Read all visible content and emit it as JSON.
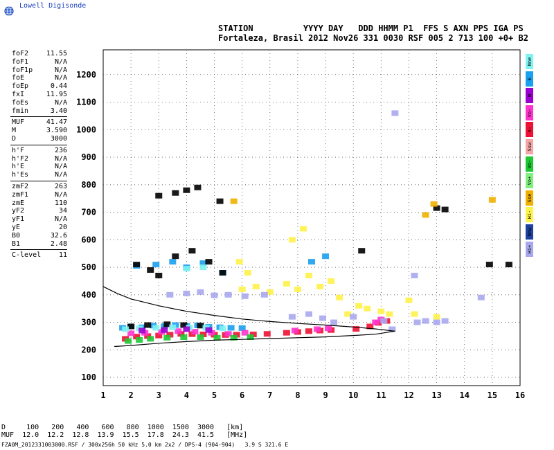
{
  "brand": "Lowell Digisonde",
  "header": {
    "line1": "STATION          YYYY DAY   DDD HHMM P1  FFS S AXN PPS IGA PS",
    "line2": "Fortaleza, Brasil 2012 Nov26 331 0030 RSF 005 2 713 100 +0+ B2"
  },
  "params": {
    "group1": [
      {
        "k": "foF2",
        "v": "11.55"
      },
      {
        "k": "foF1",
        "v": "N/A"
      },
      {
        "k": "foF1p",
        "v": "N/A"
      },
      {
        "k": "foE",
        "v": "N/A"
      },
      {
        "k": "foEp",
        "v": "0.44"
      },
      {
        "k": "fxI",
        "v": "11.95"
      },
      {
        "k": "foEs",
        "v": "N/A"
      },
      {
        "k": "fmin",
        "v": "3.40"
      }
    ],
    "group2": [
      {
        "k": "MUF",
        "v": "41.47"
      },
      {
        "k": "M",
        "v": "3.590"
      },
      {
        "k": "D",
        "v": "3000"
      }
    ],
    "group3": [
      {
        "k": "h'F",
        "v": "236"
      },
      {
        "k": "h'F2",
        "v": "N/A"
      },
      {
        "k": "h'E",
        "v": "N/A"
      },
      {
        "k": "h'Es",
        "v": "N/A"
      }
    ],
    "group4": [
      {
        "k": "zmF2",
        "v": "263"
      },
      {
        "k": "zmF1",
        "v": "N/A"
      },
      {
        "k": "zmE",
        "v": "110"
      },
      {
        "k": "yF2",
        "v": "34"
      },
      {
        "k": "yF1",
        "v": "N/A"
      },
      {
        "k": "yE",
        "v": "20"
      },
      {
        "k": "B0",
        "v": "32.6"
      },
      {
        "k": "B1",
        "v": "2.48"
      }
    ],
    "group5": [
      {
        "k": "C-level",
        "v": "11"
      }
    ]
  },
  "legend": [
    {
      "label": "Nne",
      "color": "#7ff2f2"
    },
    {
      "label": "E",
      "color": "#1aa0f0"
    },
    {
      "label": "W",
      "color": "#9b00d0"
    },
    {
      "label": "Vo-",
      "color": "#ff33cc"
    },
    {
      "label": "X-",
      "color": "#ee1133"
    },
    {
      "label": "Ssw",
      "color": "#f4a6a6"
    },
    {
      "label": "Vo-",
      "color": "#1ec832"
    },
    {
      "label": "Vo+",
      "color": "#7ff07f"
    },
    {
      "label": "Sse",
      "color": "#f0b000"
    },
    {
      "label": "Hi-",
      "color": "#fff24a"
    },
    {
      "label": "Nnw",
      "color": "#1e40a0"
    },
    {
      "label": "Hi+",
      "color": "#a8a8ee"
    }
  ],
  "footer": {
    "d_line": "D     100   200   400   600   800  1000  1500  3000   [km]",
    "muf_line": "MUF  12.0  12.2  12.8  13.9  15.5  17.8  24.3  41.5   [MHz]",
    "file_line": "FZA0M_2012331003000.RSF / 300x256h 50 kHz 5.0 km 2x2 / DPS-4 (904-904)   3.9 S 321.6 E"
  },
  "chart_data": {
    "type": "scatter",
    "title": "",
    "xlabel": "",
    "ylabel": "",
    "xlim": [
      1,
      16
    ],
    "ylim": [
      70,
      1290
    ],
    "x_ticks": [
      1,
      2,
      3,
      4,
      5,
      6,
      7,
      8,
      9,
      10,
      11,
      12,
      13,
      14,
      15,
      16
    ],
    "y_ticks": [
      100,
      200,
      300,
      400,
      500,
      600,
      700,
      800,
      900,
      1000,
      1100,
      1200
    ],
    "grid": true,
    "series": [
      {
        "color": "#1aa0f0",
        "points": [
          [
            1.7,
            280
          ],
          [
            2.0,
            285
          ],
          [
            2.4,
            282
          ],
          [
            2.8,
            288
          ],
          [
            3.2,
            286
          ],
          [
            3.6,
            290
          ],
          [
            4.0,
            287
          ],
          [
            4.4,
            289
          ],
          [
            4.8,
            284
          ],
          [
            5.2,
            282
          ],
          [
            5.6,
            280
          ],
          [
            6.0,
            279
          ],
          [
            2.2,
            505
          ],
          [
            2.9,
            510
          ],
          [
            3.5,
            520
          ],
          [
            4.0,
            500
          ],
          [
            4.6,
            515
          ],
          [
            5.3,
            480
          ],
          [
            8.5,
            520
          ],
          [
            9.0,
            540
          ]
        ]
      },
      {
        "color": "#ee1133",
        "points": [
          [
            1.8,
            240
          ],
          [
            2.2,
            248
          ],
          [
            2.6,
            250
          ],
          [
            3.0,
            252
          ],
          [
            3.4,
            255
          ],
          [
            3.8,
            258
          ],
          [
            4.2,
            257
          ],
          [
            4.6,
            256
          ],
          [
            5.0,
            255
          ],
          [
            5.4,
            254
          ],
          [
            5.8,
            255
          ],
          [
            6.4,
            256
          ],
          [
            6.9,
            258
          ],
          [
            7.6,
            262
          ],
          [
            8.0,
            265
          ],
          [
            8.4,
            268
          ],
          [
            8.8,
            270
          ],
          [
            9.2,
            272
          ],
          [
            10.1,
            276
          ],
          [
            10.6,
            285
          ],
          [
            10.9,
            298
          ],
          [
            11.2,
            305
          ]
        ]
      },
      {
        "color": "#ff33cc",
        "points": [
          [
            2.0,
            260
          ],
          [
            2.5,
            262
          ],
          [
            3.1,
            265
          ],
          [
            3.7,
            268
          ],
          [
            4.3,
            266
          ],
          [
            4.9,
            262
          ],
          [
            5.5,
            258
          ],
          [
            6.1,
            262
          ],
          [
            7.9,
            270
          ],
          [
            8.7,
            275
          ],
          [
            9.1,
            278
          ],
          [
            10.8,
            300
          ],
          [
            11.0,
            310
          ]
        ]
      },
      {
        "color": "#1ec832",
        "points": [
          [
            1.9,
            232
          ],
          [
            2.3,
            236
          ],
          [
            2.7,
            240
          ],
          [
            3.3,
            244
          ],
          [
            3.9,
            246
          ],
          [
            4.5,
            246
          ],
          [
            5.1,
            244
          ],
          [
            5.7,
            244
          ],
          [
            6.3,
            246
          ]
        ]
      },
      {
        "color": "#fff24a",
        "points": [
          [
            6.0,
            420
          ],
          [
            6.5,
            430
          ],
          [
            7.0,
            410
          ],
          [
            7.6,
            440
          ],
          [
            8.0,
            420
          ],
          [
            8.4,
            470
          ],
          [
            8.8,
            430
          ],
          [
            9.2,
            450
          ],
          [
            9.5,
            390
          ],
          [
            9.8,
            330
          ],
          [
            10.2,
            360
          ],
          [
            10.5,
            350
          ],
          [
            11.0,
            340
          ],
          [
            11.3,
            330
          ],
          [
            12.0,
            380
          ],
          [
            12.2,
            330
          ],
          [
            13.0,
            320
          ],
          [
            7.8,
            600
          ],
          [
            8.2,
            640
          ],
          [
            5.9,
            520
          ],
          [
            6.2,
            480
          ]
        ]
      },
      {
        "color": "#a8a8ee",
        "points": [
          [
            3.4,
            400
          ],
          [
            4.0,
            405
          ],
          [
            4.5,
            410
          ],
          [
            5.0,
            398
          ],
          [
            5.5,
            400
          ],
          [
            6.1,
            395
          ],
          [
            6.8,
            400
          ],
          [
            7.8,
            320
          ],
          [
            8.4,
            330
          ],
          [
            8.9,
            315
          ],
          [
            9.3,
            300
          ],
          [
            10.0,
            320
          ],
          [
            11.1,
            305
          ],
          [
            11.4,
            275
          ],
          [
            12.3,
            300
          ],
          [
            12.6,
            305
          ],
          [
            13.0,
            300
          ],
          [
            13.3,
            305
          ],
          [
            12.2,
            470
          ],
          [
            14.6,
            390
          ],
          [
            11.5,
            1060
          ]
        ]
      },
      {
        "color": "#000000",
        "points": [
          [
            2.2,
            510
          ],
          [
            2.7,
            490
          ],
          [
            3.0,
            470
          ],
          [
            3.6,
            540
          ],
          [
            4.2,
            560
          ],
          [
            4.8,
            520
          ],
          [
            5.3,
            480
          ],
          [
            2.0,
            285
          ],
          [
            2.6,
            290
          ],
          [
            3.3,
            293
          ],
          [
            3.9,
            290
          ],
          [
            4.5,
            288
          ],
          [
            3.0,
            760
          ],
          [
            3.6,
            770
          ],
          [
            4.0,
            780
          ],
          [
            4.4,
            790
          ],
          [
            5.2,
            740
          ],
          [
            13.0,
            715
          ],
          [
            13.3,
            710
          ],
          [
            14.9,
            510
          ],
          [
            15.6,
            510
          ],
          [
            10.3,
            560
          ]
        ]
      },
      {
        "color": "#f0b000",
        "points": [
          [
            12.6,
            690
          ],
          [
            12.9,
            730
          ],
          [
            15.0,
            745
          ],
          [
            5.7,
            740
          ]
        ]
      },
      {
        "color": "#7ff2f2",
        "points": [
          [
            1.8,
            275
          ],
          [
            2.3,
            278
          ],
          [
            2.9,
            280
          ],
          [
            3.5,
            282
          ],
          [
            4.1,
            281
          ],
          [
            4.7,
            280
          ],
          [
            5.3,
            278
          ],
          [
            4.0,
            495
          ],
          [
            4.6,
            500
          ]
        ]
      },
      {
        "color": "#9b00d0",
        "points": [
          [
            2.4,
            270
          ],
          [
            3.2,
            272
          ],
          [
            4.0,
            275
          ],
          [
            4.8,
            272
          ]
        ]
      }
    ],
    "traces": [
      {
        "name": "upper",
        "points": [
          [
            1.0,
            430
          ],
          [
            1.5,
            405
          ],
          [
            2.0,
            385
          ],
          [
            3.0,
            360
          ],
          [
            4.0,
            340
          ],
          [
            5.0,
            325
          ],
          [
            6.0,
            312
          ],
          [
            7.0,
            303
          ],
          [
            8.0,
            296
          ],
          [
            9.0,
            290
          ],
          [
            10.0,
            283
          ],
          [
            10.8,
            276
          ],
          [
            11.5,
            268
          ]
        ]
      },
      {
        "name": "lower",
        "points": [
          [
            1.4,
            212
          ],
          [
            2.0,
            216
          ],
          [
            3.0,
            224
          ],
          [
            4.0,
            230
          ],
          [
            5.0,
            235
          ],
          [
            6.0,
            238
          ],
          [
            7.0,
            241
          ],
          [
            8.0,
            244
          ],
          [
            9.0,
            247
          ],
          [
            10.0,
            252
          ],
          [
            10.8,
            257
          ],
          [
            11.5,
            268
          ]
        ]
      }
    ]
  }
}
